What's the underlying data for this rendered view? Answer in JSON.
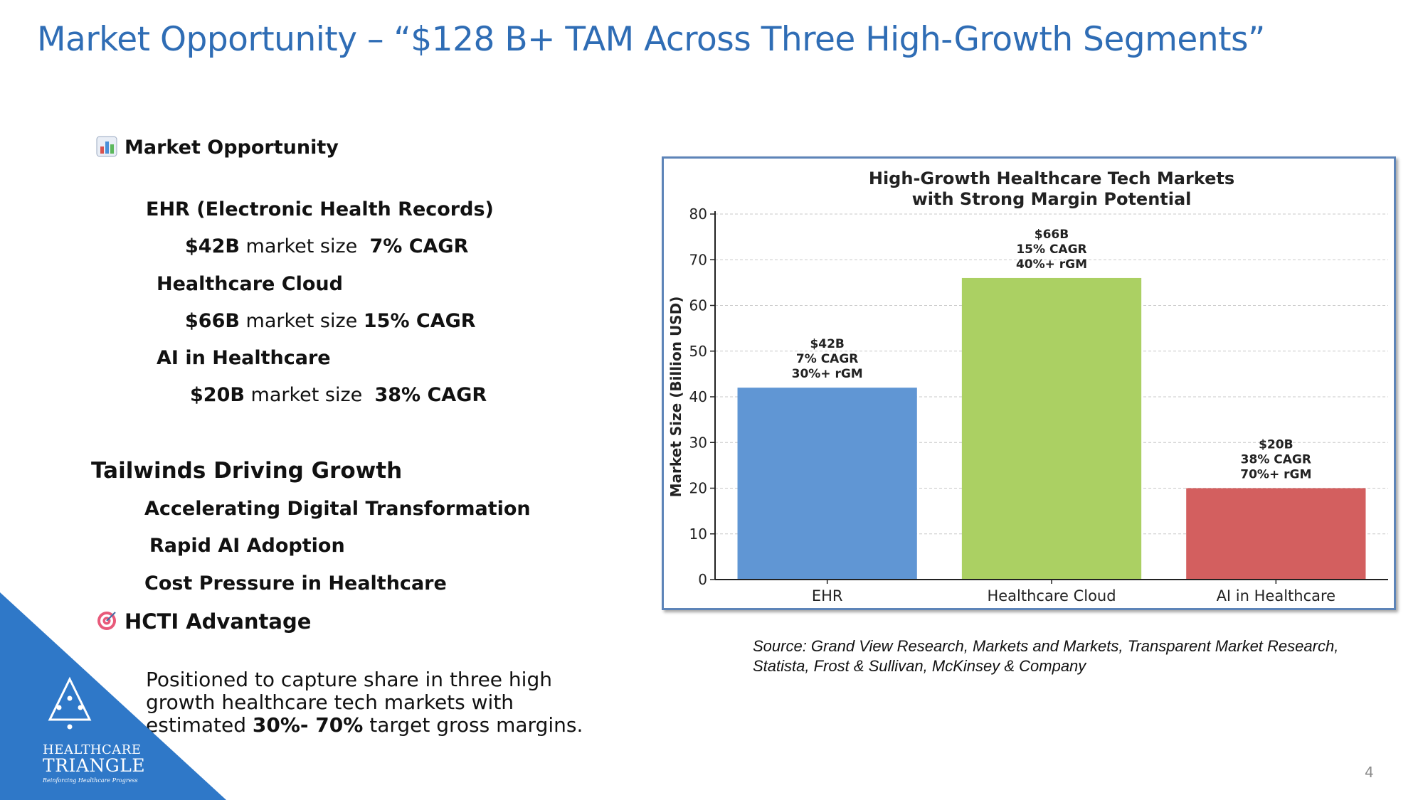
{
  "title": "Market Opportunity – “$128 B+ TAM Across Three High-Growth Segments”",
  "market_section": {
    "heading": "Market Opportunity",
    "icon": "bar-chart-icon",
    "segments": [
      {
        "name": "EHR (Electronic Health Records)",
        "size": "$42B",
        "size_label": " market size  ",
        "cagr": "7% CAGR"
      },
      {
        "name": "Healthcare Cloud",
        "size": "$66B",
        "size_label": " market size ",
        "cagr": "15% CAGR"
      },
      {
        "name": "AI in Healthcare",
        "size": "$20B",
        "size_label": " market size  ",
        "cagr": "38% CAGR"
      }
    ]
  },
  "tailwinds": {
    "heading": "Tailwinds Driving Growth",
    "items": [
      "Accelerating Digital Transformation",
      "Rapid AI Adoption",
      "Cost Pressure in Healthcare"
    ]
  },
  "advantage": {
    "heading": "HCTI Advantage",
    "icon": "target-icon",
    "text_before": "Positioned to capture share in three high growth healthcare tech markets with estimated ",
    "text_bold": "30%- 70%",
    "text_after": " target gross margins."
  },
  "source": {
    "line1": "Source: Grand View Research, Markets and Markets, Transparent Market Research,",
    "line2": "Statista, Frost & Sullivan, McKinsey & Company"
  },
  "page_number": "4",
  "logo": {
    "line1": "HEALTHCARE",
    "line2": "TRIANGLE",
    "tagline": "Reinforcing Healthcare Progress"
  },
  "colors": {
    "title": "#2f6db5",
    "corner": "#2f78c8",
    "bar_ehr": "#6096d4",
    "bar_cloud": "#abd063",
    "bar_ai": "#d35f5f"
  },
  "chart_data": {
    "type": "bar",
    "title_line1": "High-Growth Healthcare Tech Markets",
    "title_line2": "with Strong Margin Potential",
    "xlabel": "",
    "ylabel": "Market Size (Billion USD)",
    "ylim": [
      0,
      80
    ],
    "yticks": [
      0,
      10,
      20,
      30,
      40,
      50,
      60,
      70,
      80
    ],
    "grid": true,
    "categories": [
      "EHR",
      "Healthcare Cloud",
      "AI in Healthcare"
    ],
    "values": [
      42,
      66,
      20
    ],
    "bar_colors": [
      "#6096d4",
      "#abd063",
      "#d35f5f"
    ],
    "annotations": [
      [
        "$42B",
        "7% CAGR",
        "30%+ rGM"
      ],
      [
        "$66B",
        "15% CAGR",
        "40%+ rGM"
      ],
      [
        "$20B",
        "38% CAGR",
        "70%+ rGM"
      ]
    ]
  }
}
